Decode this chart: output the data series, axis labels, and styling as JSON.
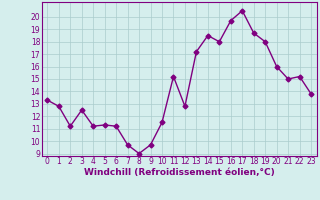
{
  "x": [
    0,
    1,
    2,
    3,
    4,
    5,
    6,
    7,
    8,
    9,
    10,
    11,
    12,
    13,
    14,
    15,
    16,
    17,
    18,
    19,
    20,
    21,
    22,
    23
  ],
  "y": [
    13.3,
    12.8,
    11.2,
    12.5,
    11.2,
    11.3,
    11.2,
    9.7,
    9.0,
    9.7,
    11.5,
    15.2,
    12.8,
    17.2,
    18.5,
    18.0,
    19.7,
    20.5,
    18.7,
    18.0,
    16.0,
    15.0,
    15.2,
    13.8
  ],
  "line_color": "#800080",
  "marker": "D",
  "marker_size": 2.5,
  "bg_color": "#d5eeed",
  "grid_color": "#aacccc",
  "xlabel": "Windchill (Refroidissement éolien,°C)",
  "xlabel_color": "#800080",
  "xlabel_fontsize": 6.5,
  "tick_color": "#800080",
  "tick_fontsize": 5.5,
  "ylim": [
    9,
    21
  ],
  "xlim": [
    -0.5,
    23.5
  ],
  "yticks": [
    9,
    10,
    11,
    12,
    13,
    14,
    15,
    16,
    17,
    18,
    19,
    20
  ],
  "xticks": [
    0,
    1,
    2,
    3,
    4,
    5,
    6,
    7,
    8,
    9,
    10,
    11,
    12,
    13,
    14,
    15,
    16,
    17,
    18,
    19,
    20,
    21,
    22,
    23
  ],
  "line_width": 1.0,
  "spine_color": "#800080"
}
